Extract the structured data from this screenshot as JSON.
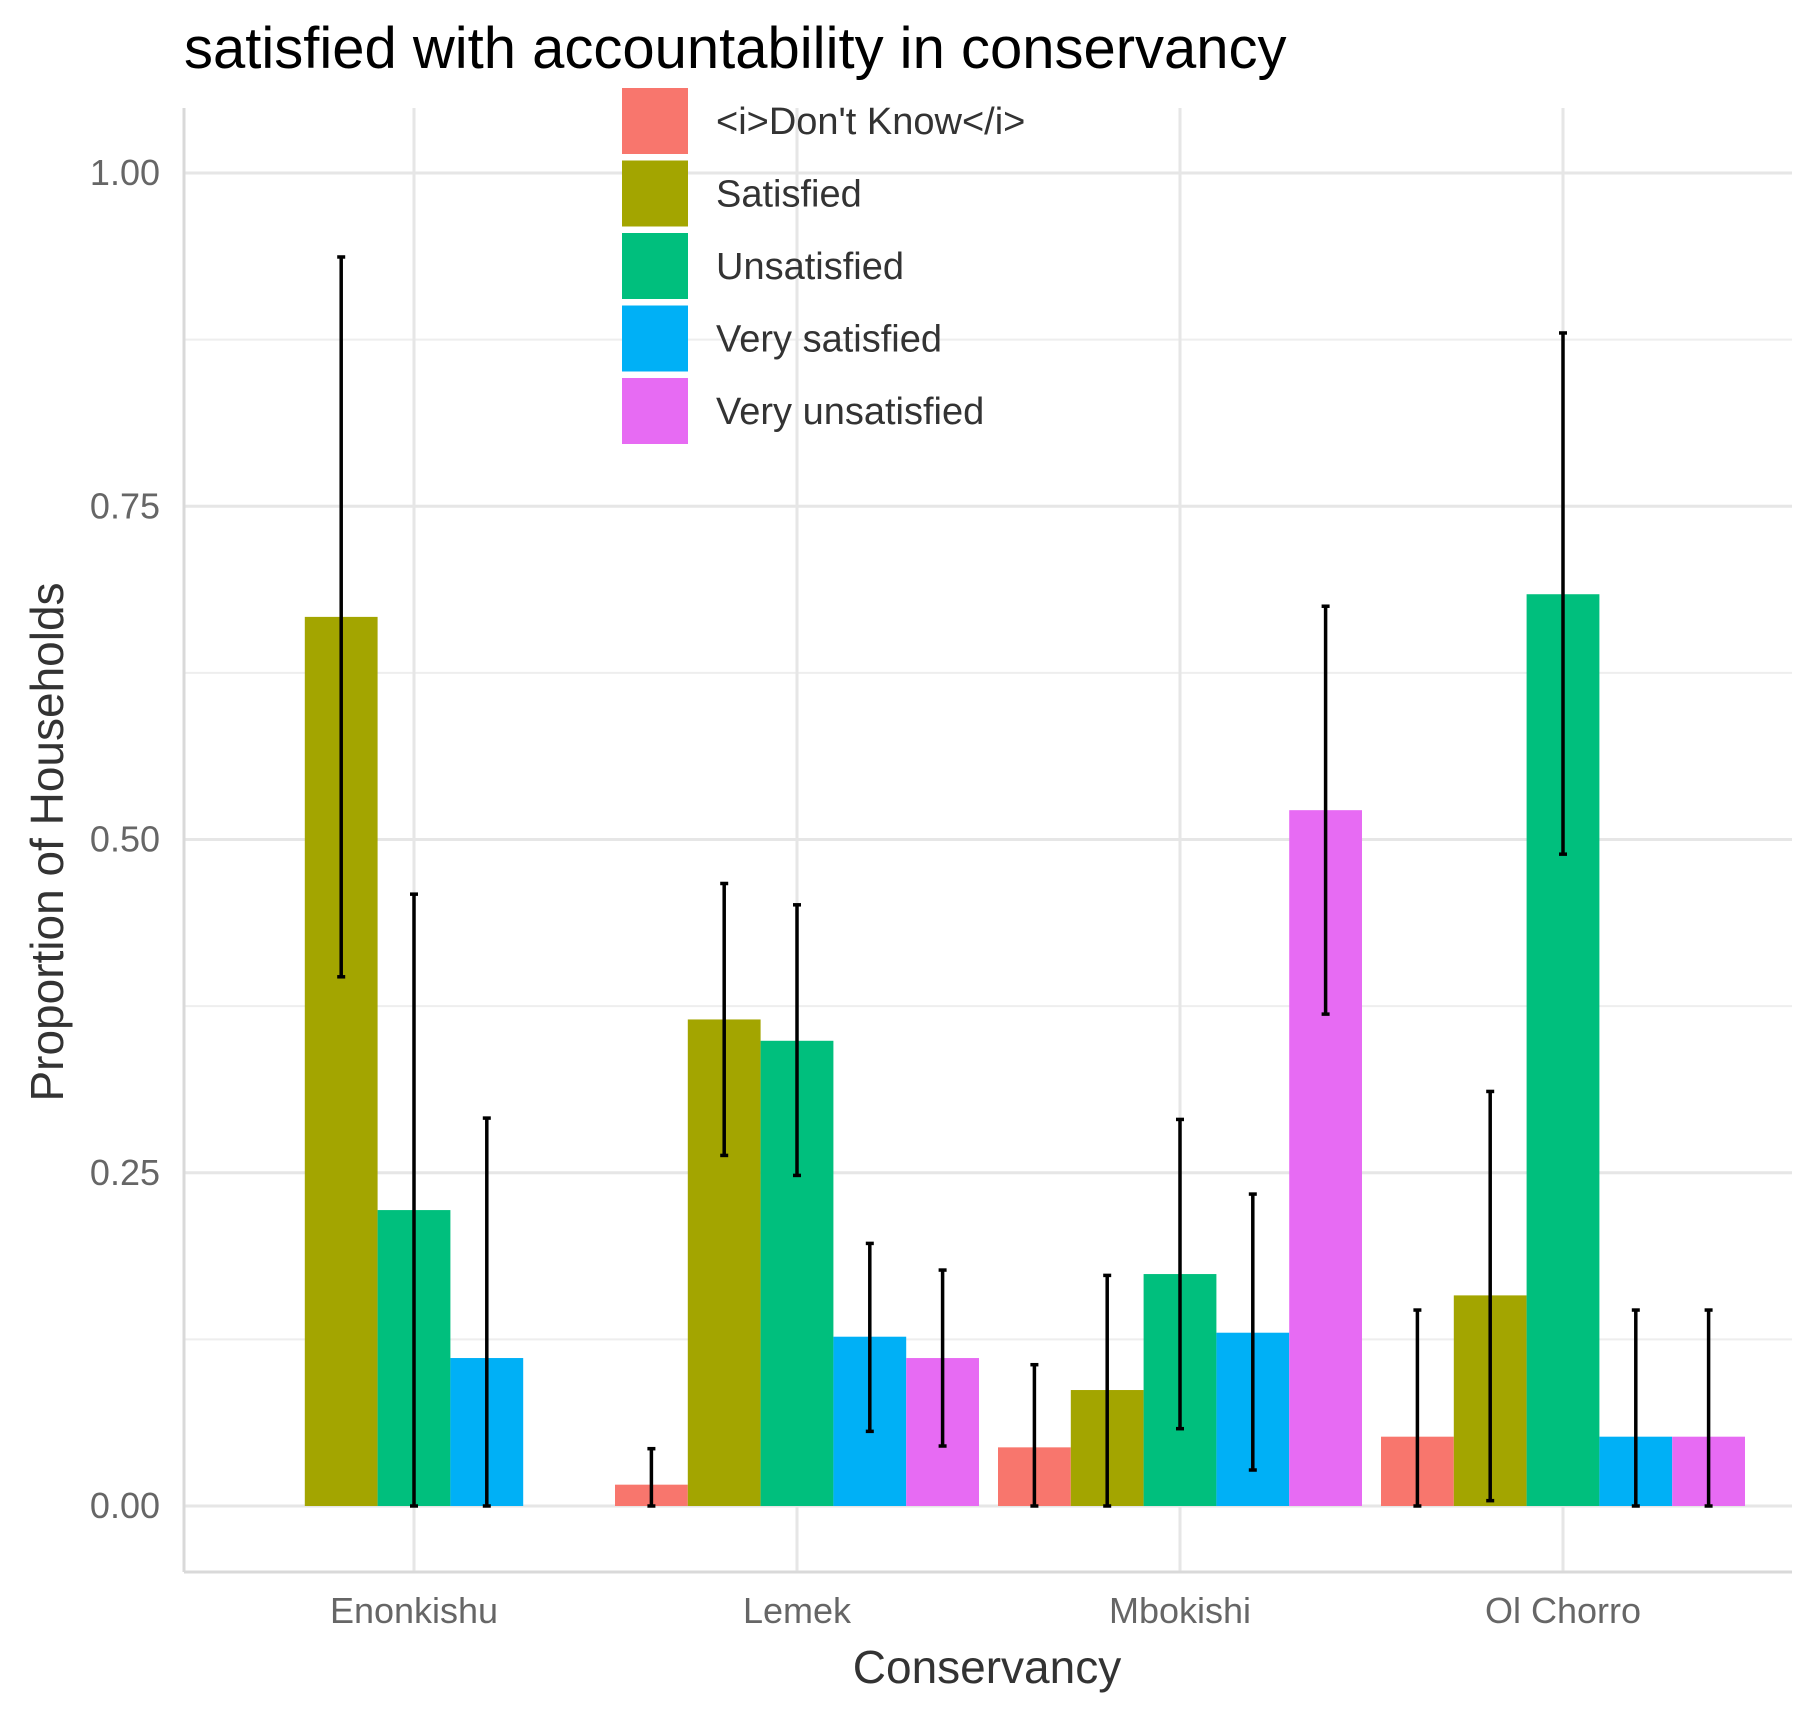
{
  "chart_data": {
    "type": "bar",
    "title": "satisfied with accountability in conservancy",
    "xlabel": "Conservancy",
    "ylabel": "Proportion of Households",
    "ylim": [
      -0.05,
      1.05
    ],
    "yticks": [
      0.0,
      0.25,
      0.5,
      0.75,
      1.0
    ],
    "ytick_labels": [
      "0.00",
      "0.25",
      "0.50",
      "0.75",
      "1.00"
    ],
    "categories": [
      "Enonkishu",
      "Lemek",
      "Mbokishi",
      "Ol Chorro"
    ],
    "grid": true,
    "legend_position": "top-center",
    "series": [
      {
        "name": "<i>Don't Know</i>",
        "color": "#F8766D",
        "values": [
          null,
          0.016,
          0.044,
          0.052
        ],
        "err_low": [
          null,
          0.0,
          0.0,
          0.0
        ],
        "err_high": [
          null,
          0.043,
          0.106,
          0.147
        ]
      },
      {
        "name": "Satisfied",
        "color": "#A3A500",
        "values": [
          0.667,
          0.365,
          0.087,
          0.158
        ],
        "err_low": [
          0.397,
          0.263,
          0.0,
          0.004
        ],
        "err_high": [
          0.937,
          0.467,
          0.173,
          0.311
        ]
      },
      {
        "name": "Unsatisfied",
        "color": "#00BF7D",
        "values": [
          0.222,
          0.349,
          0.174,
          0.684
        ],
        "err_low": [
          0.0,
          0.248,
          0.058,
          0.489
        ],
        "err_high": [
          0.459,
          0.451,
          0.29,
          0.88
        ]
      },
      {
        "name": "Very satisfied",
        "color": "#00B0F6",
        "values": [
          0.111,
          0.127,
          0.13,
          0.052
        ],
        "err_low": [
          0.0,
          0.056,
          0.027,
          0.0
        ],
        "err_high": [
          0.291,
          0.197,
          0.234,
          0.147
        ]
      },
      {
        "name": "Very unsatisfied",
        "color": "#E76BF3",
        "values": [
          null,
          0.111,
          0.522,
          0.052
        ],
        "err_low": [
          null,
          0.045,
          0.369,
          0.0
        ],
        "err_high": [
          null,
          0.177,
          0.675,
          0.147
        ]
      }
    ]
  }
}
